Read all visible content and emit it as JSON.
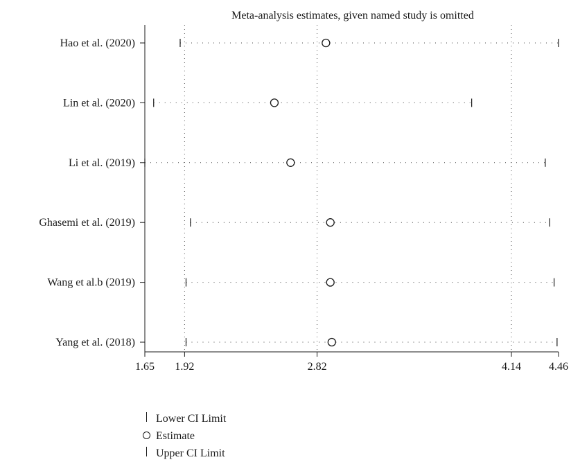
{
  "chart_data": {
    "type": "forest",
    "title": "Meta-analysis estimates, given named study is omitted",
    "xlabel": "",
    "ylabel": "",
    "xlim": [
      1.65,
      4.46
    ],
    "x_ticks": [
      1.65,
      1.92,
      2.82,
      4.14,
      4.46
    ],
    "x_tick_labels": [
      "1.65",
      "1.92",
      "2.82",
      "4.14",
      "4.46"
    ],
    "reference_lines": [
      1.92,
      2.82,
      4.14
    ],
    "studies": [
      {
        "name": "Hao et al. (2020)",
        "lower": 1.89,
        "estimate": 2.88,
        "upper": 4.46
      },
      {
        "name": "Lin et al. (2020)",
        "lower": 1.71,
        "estimate": 2.53,
        "upper": 3.87
      },
      {
        "name": "Li et al. (2019)",
        "lower": 1.65,
        "estimate": 2.64,
        "upper": 4.37
      },
      {
        "name": "Ghasemi et al. (2019)",
        "lower": 1.96,
        "estimate": 2.91,
        "upper": 4.4
      },
      {
        "name": "Wang et al.b (2019)",
        "lower": 1.93,
        "estimate": 2.91,
        "upper": 4.43
      },
      {
        "name": "Yang et al. (2018)",
        "lower": 1.93,
        "estimate": 2.92,
        "upper": 4.45
      }
    ],
    "grid": false,
    "legend_position": "bottom-left",
    "legend": [
      "Lower CI Limit",
      "Estimate",
      "Upper CI Limit"
    ]
  }
}
